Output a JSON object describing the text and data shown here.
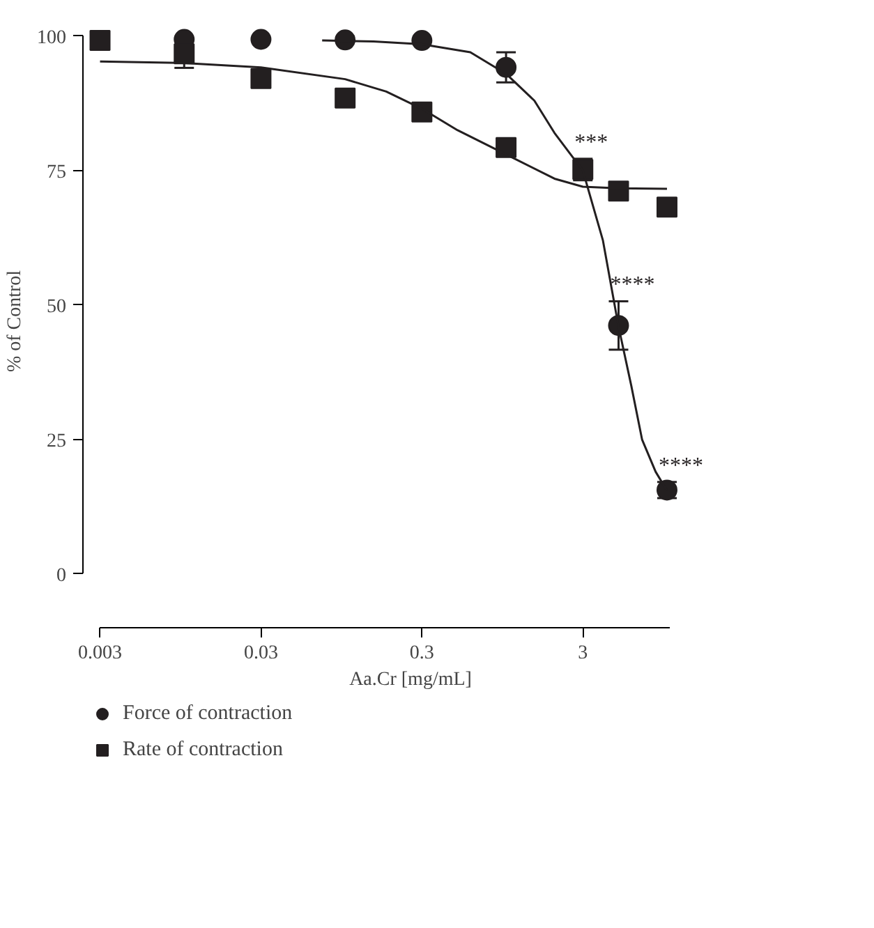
{
  "chart_data": {
    "type": "scatter",
    "xlabel": "Aa.Cr [mg/mL]",
    "ylabel": "% of Control",
    "log": "x",
    "xlim": [
      0.003,
      10.4
    ],
    "ylim": [
      0,
      100
    ],
    "xticks": [
      0.003,
      0.03,
      0.3,
      3
    ],
    "yticks": [
      0,
      25,
      50,
      75,
      100
    ],
    "grid": false,
    "legend": "bottom left",
    "series": [
      {
        "name": "Force of contraction",
        "color": "#231f20",
        "marker": "circle",
        "x": [
          0.01,
          0.03,
          0.1,
          0.3,
          1,
          3,
          5,
          10
        ],
        "values": [
          99.4,
          99.4,
          99.3,
          99.2,
          94.2,
          null,
          46.2,
          15.6
        ],
        "errors": [
          null,
          null,
          null,
          null,
          2.8,
          null,
          4.5,
          1.5
        ]
      },
      {
        "name": "Rate of contraction",
        "color": "#231f20",
        "marker": "square",
        "x": [
          0.003,
          0.01,
          0.03,
          0.1,
          0.3,
          1,
          3,
          5,
          10
        ],
        "values": [
          99.2,
          96.7,
          92.1,
          88.5,
          85.9,
          79.3,
          75.2,
          71.2,
          68.2
        ],
        "errors": [
          null,
          2.6,
          null,
          1.2,
          1.5,
          null,
          2,
          1.5,
          null
        ]
      },
      {
        "type": "line",
        "color": "#231f20",
        "marker": "none",
        "x": [
          0.072,
          0.15,
          0.3,
          0.6,
          1,
          1.5,
          2,
          3,
          4,
          5,
          6,
          7,
          8.5,
          10
        ],
        "values": [
          99.2,
          99,
          98.5,
          97,
          93,
          88,
          82,
          75,
          62,
          46,
          35,
          25,
          19,
          15.5
        ]
      },
      {
        "type": "line",
        "color": "#231f20",
        "marker": "none",
        "x": [
          0.003,
          0.01,
          0.03,
          0.1,
          0.18,
          0.3,
          0.5,
          1,
          2,
          3,
          5,
          10
        ],
        "values": [
          95.3,
          95,
          94.2,
          92,
          89.7,
          86.5,
          82.5,
          78,
          73.5,
          72,
          71.7,
          71.6
        ]
      }
    ],
    "annotations": [
      {
        "text": "***",
        "x": 3,
        "y": 77.2
      },
      {
        "text": "****",
        "x": 5,
        "y": 50.7
      },
      {
        "text": "****",
        "x": 10,
        "y": 17.1
      }
    ]
  }
}
